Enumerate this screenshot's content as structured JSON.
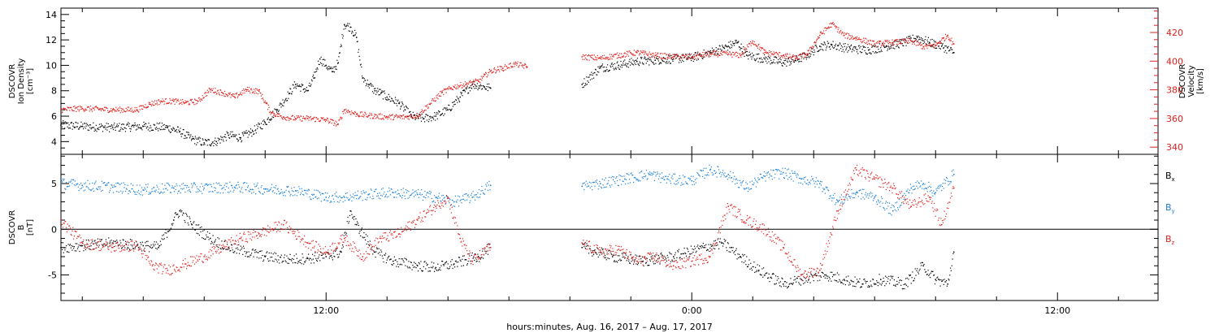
{
  "chart_data": [
    {
      "type": "scatter",
      "panel": "top",
      "ylabel_left_lines": [
        "DSCOVR",
        "Ion Density",
        "[cm⁻³]"
      ],
      "ylabel_right_lines": [
        "DSCOVR",
        "Velocity",
        "[km/s]"
      ],
      "ylim_left": [
        3,
        14.5
      ],
      "ylim_right": [
        335,
        437
      ],
      "yticks_left": [
        4,
        6,
        8,
        10,
        12,
        14
      ],
      "yticks_right": [
        340,
        360,
        380,
        400,
        420
      ],
      "x_unit": "hours since 2017-08-16 00:00 UTC",
      "xlim": [
        3.3,
        39.3
      ],
      "series": [
        {
          "name": "Ion Density",
          "axis": "left",
          "color": "#000000",
          "points": [
            [
              3.3,
              5.3
            ],
            [
              4.0,
              5.2
            ],
            [
              5.0,
              5.1
            ],
            [
              6.0,
              5.2
            ],
            [
              6.8,
              5.1
            ],
            [
              7.2,
              4.8
            ],
            [
              7.6,
              4.2
            ],
            [
              8.0,
              3.9
            ],
            [
              8.4,
              4.0
            ],
            [
              8.8,
              4.5
            ],
            [
              9.2,
              4.3
            ],
            [
              9.6,
              4.8
            ],
            [
              10.0,
              5.5
            ],
            [
              10.4,
              6.5
            ],
            [
              10.8,
              7.8
            ],
            [
              11.0,
              8.5
            ],
            [
              11.4,
              8.0
            ],
            [
              11.6,
              9.0
            ],
            [
              11.8,
              10.5
            ],
            [
              12.0,
              10.0
            ],
            [
              12.2,
              9.5
            ],
            [
              12.4,
              10.2
            ],
            [
              12.6,
              13.2
            ],
            [
              12.8,
              13.0
            ],
            [
              13.0,
              12.2
            ],
            [
              13.2,
              9.0
            ],
            [
              13.4,
              8.5
            ],
            [
              13.6,
              8.0
            ],
            [
              13.8,
              7.8
            ],
            [
              14.0,
              7.5
            ],
            [
              14.4,
              7.0
            ],
            [
              14.8,
              6.0
            ],
            [
              15.2,
              5.8
            ],
            [
              15.6,
              6.0
            ],
            [
              16.0,
              6.5
            ],
            [
              16.4,
              7.5
            ],
            [
              16.8,
              8.5
            ],
            [
              17.2,
              8.3
            ],
            [
              17.4,
              8.2
            ],
            [
              20.4,
              8.5
            ],
            [
              21.0,
              9.8
            ],
            [
              21.6,
              10.0
            ],
            [
              22.2,
              10.3
            ],
            [
              22.8,
              10.4
            ],
            [
              23.4,
              10.5
            ],
            [
              24.0,
              10.6
            ],
            [
              24.6,
              11.0
            ],
            [
              25.2,
              11.5
            ],
            [
              25.5,
              11.8
            ],
            [
              25.8,
              10.8
            ],
            [
              26.4,
              10.5
            ],
            [
              27.0,
              10.2
            ],
            [
              27.4,
              10.4
            ],
            [
              27.8,
              10.8
            ],
            [
              28.2,
              11.5
            ],
            [
              28.6,
              11.6
            ],
            [
              29.2,
              11.3
            ],
            [
              29.8,
              11.2
            ],
            [
              30.4,
              11.5
            ],
            [
              31.0,
              11.8
            ],
            [
              31.4,
              12.2
            ],
            [
              31.8,
              11.8
            ],
            [
              32.2,
              11.5
            ],
            [
              32.6,
              11.0
            ]
          ]
        },
        {
          "name": "Velocity",
          "axis": "right",
          "color": "#e0201c",
          "points": [
            [
              3.3,
              366
            ],
            [
              4.0,
              367
            ],
            [
              5.0,
              366
            ],
            [
              5.8,
              366
            ],
            [
              6.2,
              370
            ],
            [
              6.6,
              372
            ],
            [
              7.0,
              372
            ],
            [
              7.4,
              371
            ],
            [
              7.8,
              372
            ],
            [
              8.2,
              380
            ],
            [
              8.6,
              378
            ],
            [
              9.0,
              375
            ],
            [
              9.4,
              380
            ],
            [
              9.8,
              379
            ],
            [
              10.2,
              364
            ],
            [
              10.6,
              361
            ],
            [
              11.0,
              360
            ],
            [
              11.4,
              360
            ],
            [
              12.0,
              359
            ],
            [
              12.4,
              356
            ],
            [
              12.6,
              366
            ],
            [
              13.0,
              363
            ],
            [
              13.4,
              362
            ],
            [
              14.0,
              361
            ],
            [
              14.6,
              361
            ],
            [
              15.0,
              362
            ],
            [
              15.4,
              370
            ],
            [
              15.8,
              378
            ],
            [
              16.2,
              382
            ],
            [
              16.6,
              384
            ],
            [
              17.0,
              386
            ],
            [
              17.4,
              393
            ],
            [
              17.8,
              395
            ],
            [
              18.2,
              398
            ],
            [
              18.6,
              396
            ],
            [
              20.4,
              403
            ],
            [
              21.0,
              402
            ],
            [
              21.6,
              404
            ],
            [
              22.2,
              406
            ],
            [
              22.8,
              404
            ],
            [
              23.4,
              403
            ],
            [
              24.0,
              403
            ],
            [
              24.6,
              405
            ],
            [
              25.2,
              405
            ],
            [
              25.6,
              404
            ],
            [
              26.0,
              414
            ],
            [
              26.4,
              406
            ],
            [
              27.0,
              404
            ],
            [
              27.4,
              402
            ],
            [
              27.8,
              405
            ],
            [
              28.2,
              418
            ],
            [
              28.6,
              426
            ],
            [
              29.0,
              418
            ],
            [
              29.4,
              416
            ],
            [
              30.0,
              412
            ],
            [
              30.6,
              413
            ],
            [
              31.2,
              414
            ],
            [
              31.6,
              410
            ],
            [
              32.0,
              411
            ],
            [
              32.4,
              418
            ],
            [
              32.6,
              412
            ]
          ]
        }
      ]
    },
    {
      "type": "scatter",
      "panel": "bottom",
      "ylabel_left_lines": [
        "DSCOVR",
        "B",
        "[nT]"
      ],
      "ylim": [
        -7.8,
        8.2
      ],
      "yticks": [
        -5,
        0,
        5
      ],
      "zero_line": true,
      "x_unit": "hours since 2017-08-16 00:00 UTC",
      "xlim": [
        3.3,
        39.3
      ],
      "series": [
        {
          "name": "Bx",
          "label_main": "B",
          "label_sub": "x",
          "color": "#000000",
          "points": [
            [
              3.3,
              -2.0
            ],
            [
              4.0,
              -1.8
            ],
            [
              5.0,
              -1.5
            ],
            [
              6.0,
              -1.8
            ],
            [
              6.5,
              -2.0
            ],
            [
              7.0,
              1.0
            ],
            [
              7.2,
              2.0
            ],
            [
              7.6,
              0.5
            ],
            [
              8.2,
              -1.0
            ],
            [
              8.8,
              -2.0
            ],
            [
              9.4,
              -2.5
            ],
            [
              10.0,
              -3.0
            ],
            [
              10.8,
              -3.3
            ],
            [
              11.4,
              -3.2
            ],
            [
              12.0,
              -3.0
            ],
            [
              12.5,
              -2.5
            ],
            [
              12.8,
              2.0
            ],
            [
              13.0,
              0.5
            ],
            [
              13.6,
              -2.5
            ],
            [
              14.2,
              -3.5
            ],
            [
              15.0,
              -4.0
            ],
            [
              15.6,
              -4.2
            ],
            [
              16.2,
              -3.8
            ],
            [
              17.0,
              -3.0
            ],
            [
              17.4,
              -2.0
            ],
            [
              20.4,
              -2.0
            ],
            [
              21.4,
              -3.0
            ],
            [
              22.4,
              -3.5
            ],
            [
              23.4,
              -3.0
            ],
            [
              24.4,
              -2.0
            ],
            [
              25.0,
              -1.5
            ],
            [
              25.6,
              -3.0
            ],
            [
              26.2,
              -4.5
            ],
            [
              27.0,
              -6.0
            ],
            [
              27.6,
              -5.5
            ],
            [
              28.4,
              -5.0
            ],
            [
              29.0,
              -5.5
            ],
            [
              29.6,
              -6.0
            ],
            [
              30.2,
              -5.5
            ],
            [
              31.0,
              -6.0
            ],
            [
              31.6,
              -4.0
            ],
            [
              32.0,
              -5.5
            ],
            [
              32.4,
              -6.0
            ],
            [
              32.6,
              -2.5
            ]
          ]
        },
        {
          "name": "By",
          "label_main": "B",
          "label_sub": "y",
          "color": "#1a7fd6",
          "points": [
            [
              3.3,
              5.0
            ],
            [
              4.0,
              4.8
            ],
            [
              5.0,
              4.6
            ],
            [
              6.0,
              4.3
            ],
            [
              7.0,
              4.5
            ],
            [
              8.0,
              4.5
            ],
            [
              9.0,
              4.6
            ],
            [
              10.0,
              4.4
            ],
            [
              11.0,
              4.2
            ],
            [
              11.6,
              3.8
            ],
            [
              12.0,
              3.5
            ],
            [
              12.6,
              3.5
            ],
            [
              13.4,
              3.8
            ],
            [
              14.2,
              4.0
            ],
            [
              15.0,
              3.8
            ],
            [
              15.6,
              3.5
            ],
            [
              16.2,
              3.0
            ],
            [
              16.8,
              3.5
            ],
            [
              17.4,
              4.8
            ],
            [
              20.4,
              4.7
            ],
            [
              21.0,
              5.0
            ],
            [
              21.8,
              5.5
            ],
            [
              22.6,
              6.0
            ],
            [
              23.2,
              5.5
            ],
            [
              24.0,
              5.3
            ],
            [
              24.6,
              6.5
            ],
            [
              25.2,
              6.0
            ],
            [
              25.8,
              4.5
            ],
            [
              26.4,
              5.8
            ],
            [
              27.0,
              6.2
            ],
            [
              27.6,
              5.5
            ],
            [
              28.2,
              5.0
            ],
            [
              28.8,
              3.0
            ],
            [
              29.4,
              4.0
            ],
            [
              30.0,
              3.5
            ],
            [
              30.6,
              2.0
            ],
            [
              31.2,
              4.5
            ],
            [
              31.6,
              5.0
            ],
            [
              32.0,
              4.0
            ],
            [
              32.6,
              6.0
            ]
          ]
        },
        {
          "name": "Bz",
          "label_main": "B",
          "label_sub": "z",
          "color": "#e0201c",
          "points": [
            [
              3.3,
              1.0
            ],
            [
              4.0,
              -1.5
            ],
            [
              5.0,
              -2.0
            ],
            [
              5.8,
              -1.8
            ],
            [
              6.3,
              -4.0
            ],
            [
              6.8,
              -4.5
            ],
            [
              7.4,
              -3.8
            ],
            [
              8.0,
              -3.0
            ],
            [
              8.6,
              -2.0
            ],
            [
              9.2,
              -1.0
            ],
            [
              9.8,
              -0.5
            ],
            [
              10.6,
              0.5
            ],
            [
              11.4,
              -1.5
            ],
            [
              12.0,
              -2.5
            ],
            [
              12.6,
              -1.0
            ],
            [
              13.2,
              -3.0
            ],
            [
              13.8,
              -1.0
            ],
            [
              14.4,
              -0.5
            ],
            [
              15.0,
              1.0
            ],
            [
              15.6,
              2.5
            ],
            [
              16.0,
              3.5
            ],
            [
              16.4,
              -1.0
            ],
            [
              16.8,
              -3.5
            ],
            [
              17.4,
              -2.0
            ],
            [
              20.4,
              -1.5
            ],
            [
              21.0,
              -2.5
            ],
            [
              21.6,
              -2.2
            ],
            [
              22.2,
              -3.5
            ],
            [
              22.8,
              -3.0
            ],
            [
              23.4,
              -4.0
            ],
            [
              24.0,
              -3.5
            ],
            [
              24.6,
              -3.0
            ],
            [
              25.2,
              2.5
            ],
            [
              25.8,
              1.0
            ],
            [
              26.4,
              0.0
            ],
            [
              27.0,
              -2.0
            ],
            [
              27.6,
              -5.0
            ],
            [
              28.2,
              -4.5
            ],
            [
              28.8,
              2.0
            ],
            [
              29.4,
              6.5
            ],
            [
              30.0,
              5.5
            ],
            [
              30.6,
              4.5
            ],
            [
              31.2,
              2.5
            ],
            [
              31.8,
              3.5
            ],
            [
              32.2,
              0.5
            ],
            [
              32.6,
              4.5
            ]
          ]
        }
      ]
    }
  ],
  "x_axis": {
    "ticks": [
      {
        "hour": 12,
        "label": "12:00"
      },
      {
        "hour": 24,
        "label": "0:00"
      },
      {
        "hour": 36,
        "label": "12:00"
      }
    ],
    "minor_step_hours": 2,
    "title": "hours:minutes, Aug. 16, 2017 – Aug. 17, 2017"
  },
  "colors": {
    "black": "#000000",
    "red": "#e0201c",
    "blue": "#1a7fd6"
  }
}
